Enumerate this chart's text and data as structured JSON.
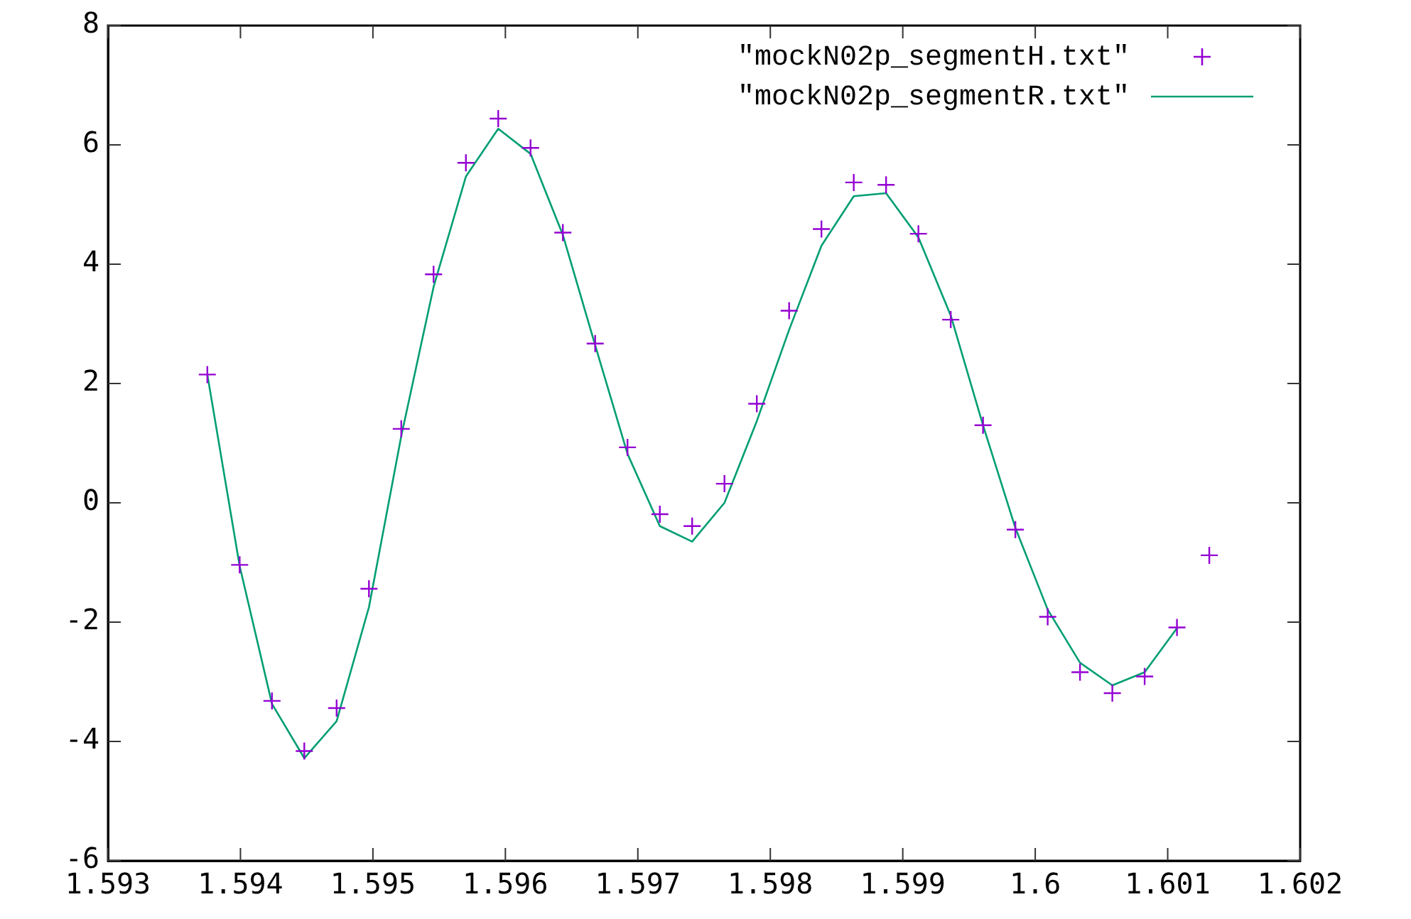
{
  "chart_data": {
    "type": "line",
    "x": [
      1.59375,
      1.593994,
      1.594238,
      1.594482,
      1.594726,
      1.59497,
      1.595214,
      1.595458,
      1.595702,
      1.595946,
      1.59619,
      1.596434,
      1.596678,
      1.596922,
      1.597166,
      1.59741,
      1.597654,
      1.597898,
      1.598142,
      1.598386,
      1.59863,
      1.598874,
      1.599118,
      1.599362,
      1.599606,
      1.59985,
      1.600094,
      1.600338,
      1.600582,
      1.600826,
      1.60107,
      1.601314
    ],
    "series": [
      {
        "name": "\"mockN02p_segmentH.txt\"",
        "type": "scatter",
        "marker": "cross",
        "color": "#9400d3",
        "values": [
          2.15,
          -1.04,
          -3.32,
          -4.16,
          -3.44,
          -1.44,
          1.24,
          3.83,
          5.7,
          6.44,
          5.95,
          4.53,
          2.67,
          0.93,
          -0.19,
          -0.39,
          0.32,
          1.66,
          3.22,
          4.59,
          5.37,
          5.33,
          4.51,
          3.07,
          1.3,
          -0.45,
          -1.91,
          -2.84,
          -3.19,
          -2.91,
          -2.09,
          -0.88
        ]
      },
      {
        "name": "\"mockN02p_segmentR.txt\"",
        "marker": "none",
        "line_style": "solid",
        "color": "#009e73",
        "values": [
          2.15,
          -1.06,
          -3.37,
          -4.28,
          -3.66,
          -1.75,
          1.12,
          3.62,
          5.47,
          6.27,
          5.85,
          4.49,
          2.64,
          0.82,
          -0.39,
          -0.65,
          0.0,
          1.37,
          2.9,
          4.31,
          5.14,
          5.19,
          4.45,
          3.14,
          1.3,
          -0.42,
          -1.79,
          -2.68,
          -3.06,
          -2.84,
          -2.1,
          null
        ]
      }
    ],
    "xlim": [
      1.593,
      1.602
    ],
    "xticks": [
      1.593,
      1.594,
      1.595,
      1.596,
      1.597,
      1.598,
      1.599,
      1.6,
      1.601,
      1.602
    ],
    "ylim": [
      -6,
      8
    ],
    "yticks": [
      -6,
      -4,
      -2,
      0,
      2,
      4,
      6,
      8
    ],
    "grid": false,
    "legend": "top right"
  }
}
